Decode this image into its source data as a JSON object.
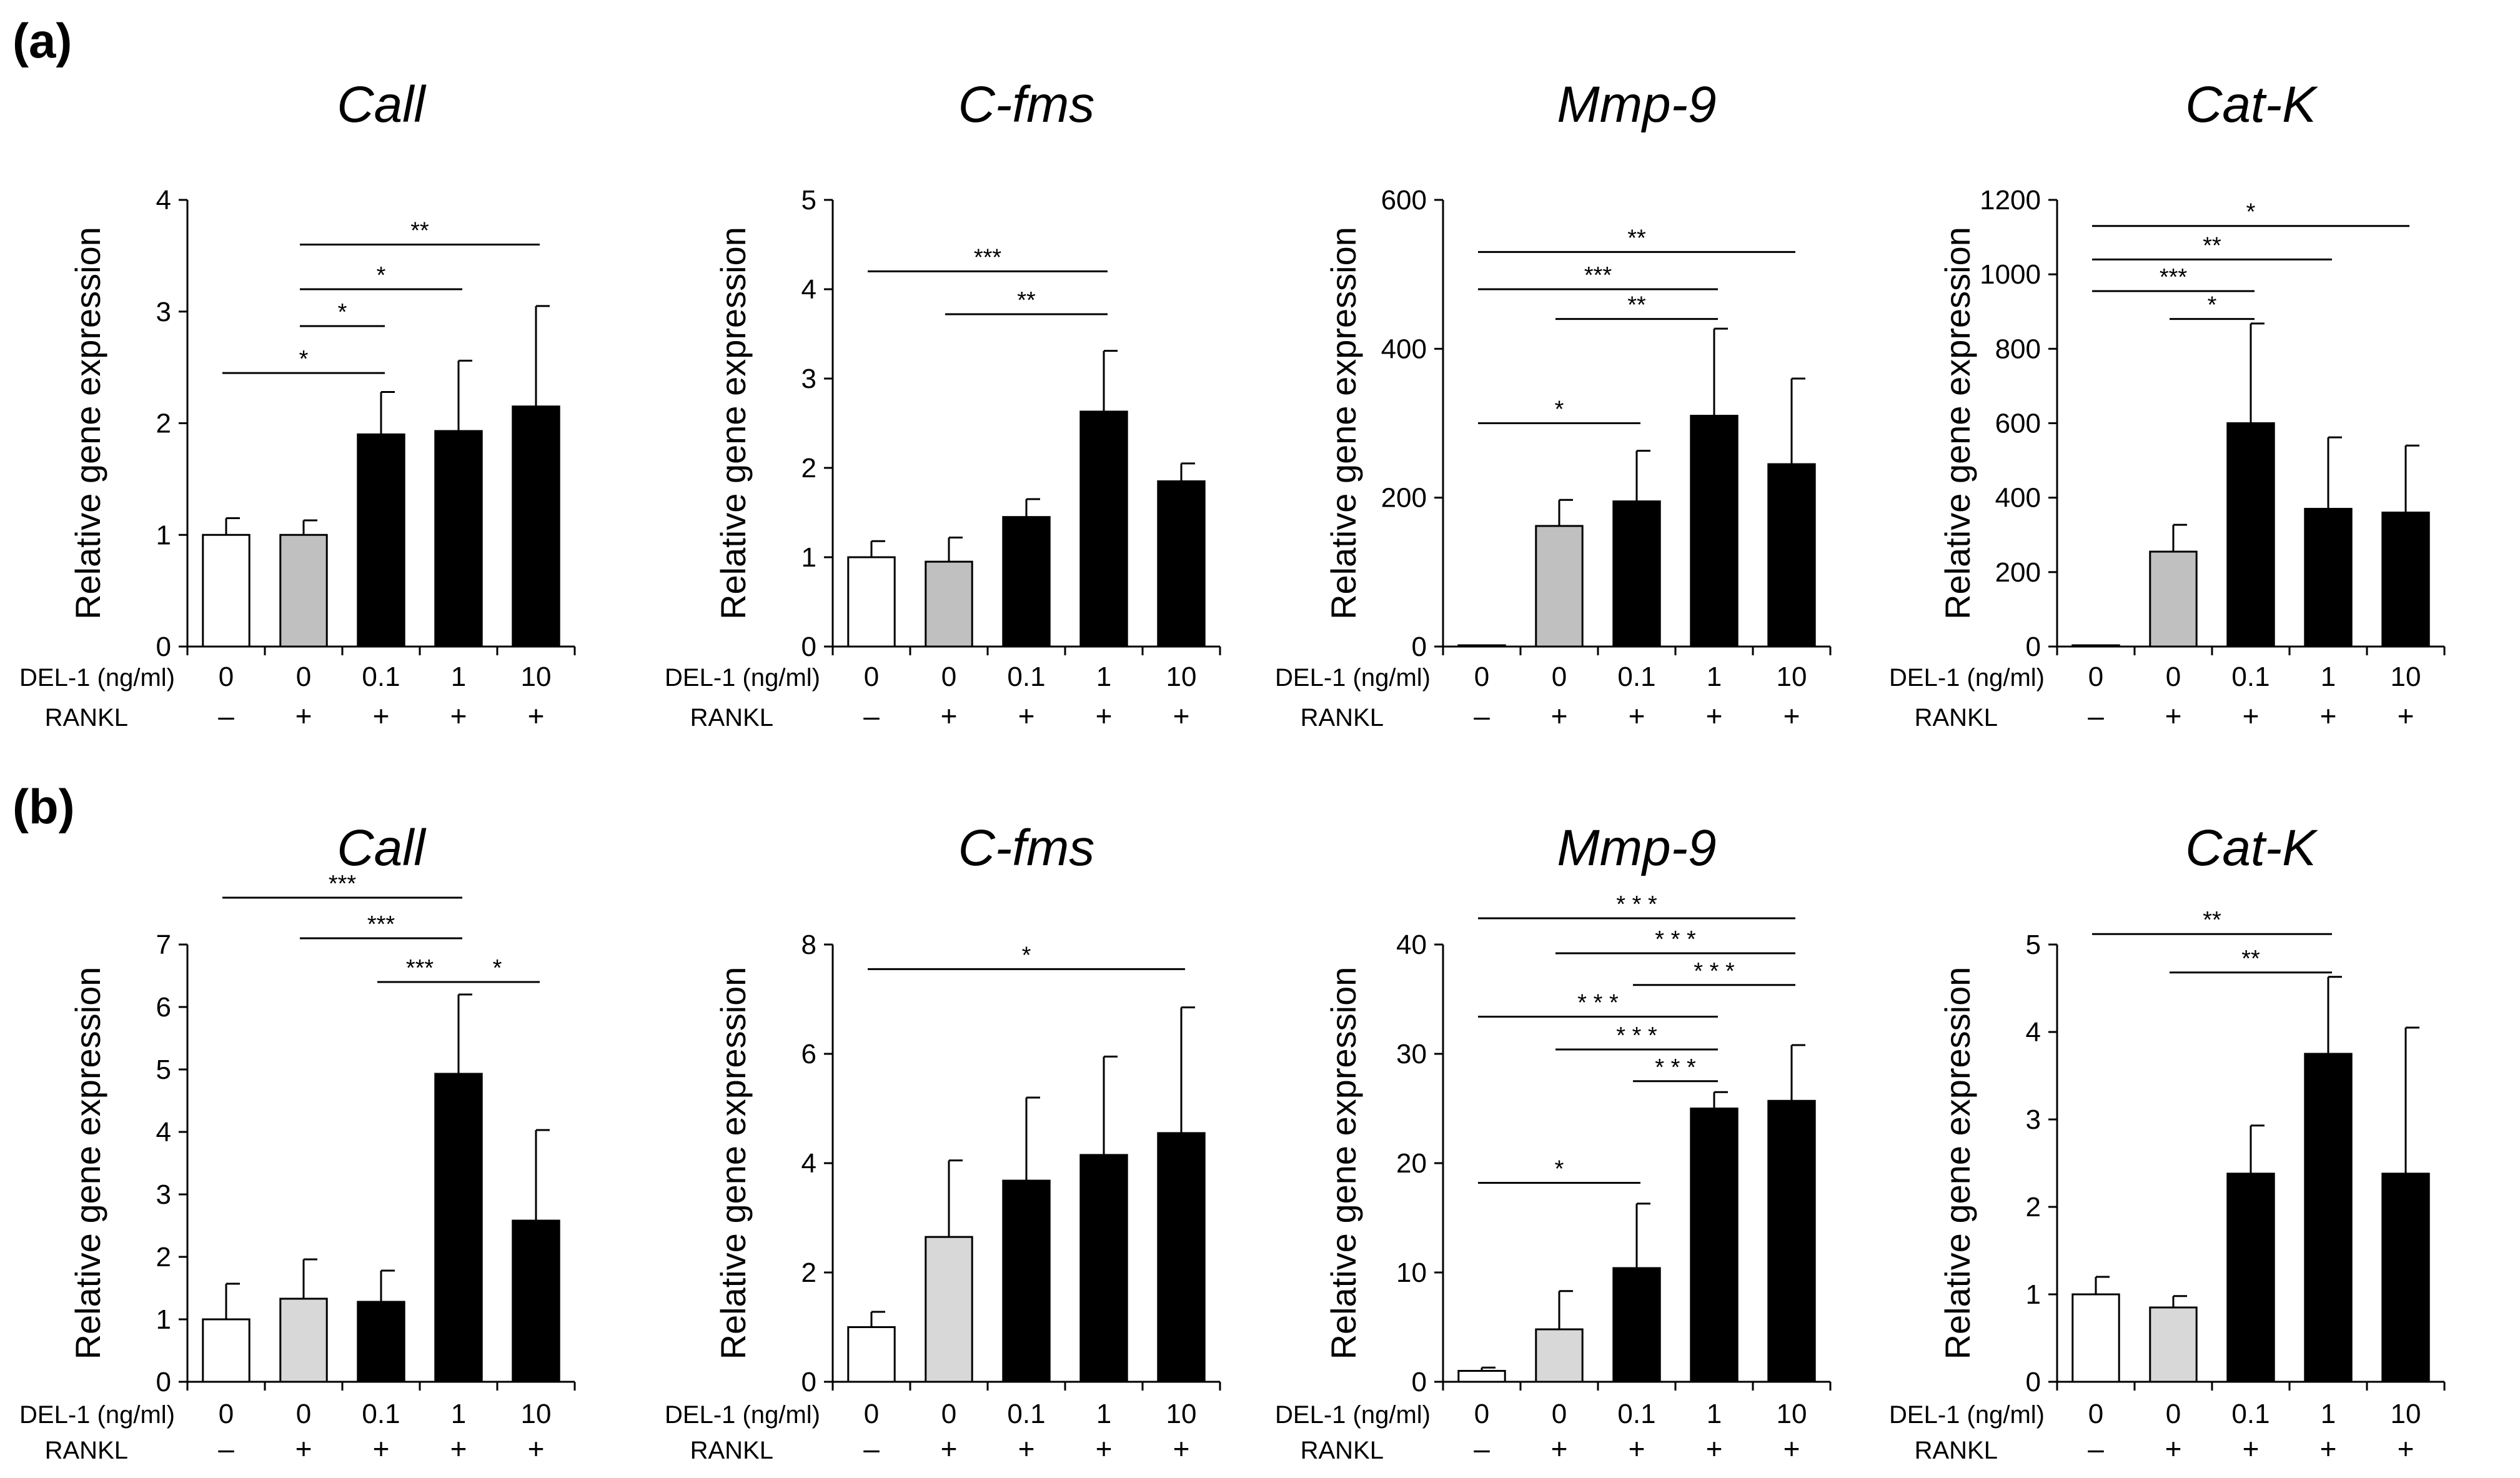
{
  "panels": [
    {
      "label": "(a)"
    },
    {
      "label": "(b)"
    }
  ],
  "chart_data": [
    {
      "panel": "(a)",
      "type": "bar",
      "title": "Call",
      "ylabel": "Relative gene expression",
      "ylim": [
        0,
        4
      ],
      "yticks": [
        0,
        1,
        2,
        3,
        4
      ],
      "categories": [
        "0",
        "0",
        "0.1",
        "1",
        "10"
      ],
      "row1_label": "DEL-1 (ng/ml)",
      "row2_label": "RANKL",
      "rankl": [
        "–",
        "+",
        "+",
        "+",
        "+"
      ],
      "values": [
        1.0,
        1.0,
        1.9,
        1.93,
        2.15
      ],
      "errors": [
        0.15,
        0.13,
        0.38,
        0.63,
        0.9
      ],
      "fills": [
        "#ffffff",
        "#c0c0c0",
        "#000000",
        "#000000",
        "#000000"
      ],
      "significance": [
        {
          "from": 0,
          "to": 2,
          "y": 2.45,
          "label": "*"
        },
        {
          "from": 1,
          "to": 2,
          "y": 2.87,
          "label": "*"
        },
        {
          "from": 1,
          "to": 3,
          "y": 3.2,
          "label": "*"
        },
        {
          "from": 1,
          "to": 4,
          "y": 3.6,
          "label": "**"
        }
      ]
    },
    {
      "panel": "(a)",
      "type": "bar",
      "title": "C-fms",
      "ylabel": "Relative gene expression",
      "ylim": [
        0,
        5
      ],
      "yticks": [
        0,
        1,
        2,
        3,
        4,
        5
      ],
      "categories": [
        "0",
        "0",
        "0.1",
        "1",
        "10"
      ],
      "row1_label": "DEL-1 (ng/ml)",
      "row2_label": "RANKL",
      "rankl": [
        "–",
        "+",
        "+",
        "+",
        "+"
      ],
      "values": [
        1.0,
        0.95,
        1.45,
        2.63,
        1.85
      ],
      "errors": [
        0.18,
        0.27,
        0.2,
        0.68,
        0.2
      ],
      "fills": [
        "#ffffff",
        "#c0c0c0",
        "#000000",
        "#000000",
        "#000000"
      ],
      "significance": [
        {
          "from": 0,
          "to": 3,
          "y": 4.2,
          "label": "***"
        },
        {
          "from": 1,
          "to": 3,
          "y": 3.72,
          "label": "**"
        }
      ]
    },
    {
      "panel": "(a)",
      "type": "bar",
      "title": "Mmp-9",
      "ylabel": "Relative gene expression",
      "ylim": [
        0,
        600
      ],
      "yticks": [
        0,
        200,
        400,
        600
      ],
      "categories": [
        "0",
        "0",
        "0.1",
        "1",
        "10"
      ],
      "row1_label": "DEL-1 (ng/ml)",
      "row2_label": "RANKL",
      "rankl": [
        "–",
        "+",
        "+",
        "+",
        "+"
      ],
      "values": [
        1,
        162,
        195,
        310,
        245
      ],
      "errors": [
        0,
        35,
        68,
        117,
        115
      ],
      "fills": [
        "#ffffff",
        "#c0c0c0",
        "#000000",
        "#000000",
        "#000000"
      ],
      "significance": [
        {
          "from": 0,
          "to": 2,
          "y": 300,
          "label": "*"
        },
        {
          "from": 1,
          "to": 3,
          "y": 440,
          "label": "**"
        },
        {
          "from": 0,
          "to": 3,
          "y": 480,
          "label": "***"
        },
        {
          "from": 0,
          "to": 4,
          "y": 530,
          "label": "**"
        }
      ]
    },
    {
      "panel": "(a)",
      "type": "bar",
      "title": "Cat-K",
      "ylabel": "Relative gene expression",
      "ylim": [
        0,
        1200
      ],
      "yticks": [
        0,
        200,
        400,
        600,
        800,
        1000,
        1200
      ],
      "categories": [
        "0",
        "0",
        "0.1",
        "1",
        "10"
      ],
      "row1_label": "DEL-1 (ng/ml)",
      "row2_label": "RANKL",
      "rankl": [
        "–",
        "+",
        "+",
        "+",
        "+"
      ],
      "values": [
        1,
        255,
        600,
        370,
        360
      ],
      "errors": [
        0,
        72,
        268,
        192,
        180
      ],
      "fills": [
        "#ffffff",
        "#c0c0c0",
        "#000000",
        "#000000",
        "#000000"
      ],
      "significance": [
        {
          "from": 1,
          "to": 2,
          "y": 880,
          "label": "*"
        },
        {
          "from": 0,
          "to": 2,
          "y": 955,
          "label": "***"
        },
        {
          "from": 0,
          "to": 3,
          "y": 1040,
          "label": "**"
        },
        {
          "from": 0,
          "to": 4,
          "y": 1130,
          "label": "*"
        }
      ]
    },
    {
      "panel": "(b)",
      "type": "bar",
      "title": "Call",
      "ylabel": "Relative gene expression",
      "ylim": [
        0,
        7
      ],
      "yticks": [
        0,
        1,
        2,
        3,
        4,
        5,
        6,
        7
      ],
      "categories": [
        "0",
        "0",
        "0.1",
        "1",
        "10"
      ],
      "row1_label": "DEL-1 (ng/ml)",
      "row2_label": "RANKL",
      "rankl": [
        "–",
        "+",
        "+",
        "+",
        "+"
      ],
      "values": [
        1.0,
        1.33,
        1.28,
        4.93,
        2.58
      ],
      "errors": [
        0.57,
        0.63,
        0.5,
        1.27,
        1.45
      ],
      "fills": [
        "#ffffff",
        "#d8d8d8",
        "#000000",
        "#000000",
        "#000000"
      ],
      "significance": [
        {
          "from": 2,
          "to": 3,
          "y": 6.4,
          "label": "***"
        },
        {
          "from": 3,
          "to": 4,
          "y": 6.4,
          "label": "*"
        },
        {
          "from": 1,
          "to": 3,
          "y": 7.1,
          "label": "***"
        },
        {
          "from": 0,
          "to": 3,
          "y": 7.75,
          "label": "***"
        }
      ]
    },
    {
      "panel": "(b)",
      "type": "bar",
      "title": "C-fms",
      "ylabel": "Relative gene expression",
      "ylim": [
        0,
        8
      ],
      "yticks": [
        0,
        2,
        4,
        6,
        8
      ],
      "categories": [
        "0",
        "0",
        "0.1",
        "1",
        "10"
      ],
      "row1_label": "DEL-1 (ng/ml)",
      "row2_label": "RANKL",
      "rankl": [
        "–",
        "+",
        "+",
        "+",
        "+"
      ],
      "values": [
        1.0,
        2.65,
        3.68,
        4.15,
        4.55
      ],
      "errors": [
        0.28,
        1.4,
        1.52,
        1.8,
        2.3
      ],
      "fills": [
        "#ffffff",
        "#d8d8d8",
        "#000000",
        "#000000",
        "#000000"
      ],
      "significance": [
        {
          "from": 0,
          "to": 4,
          "y": 7.55,
          "label": "*"
        }
      ]
    },
    {
      "panel": "(b)",
      "type": "bar",
      "title": "Mmp-9",
      "ylabel": "Relative gene expression",
      "ylim": [
        0,
        40
      ],
      "yticks": [
        0,
        10,
        20,
        30,
        40
      ],
      "categories": [
        "0",
        "0",
        "0.1",
        "1",
        "10"
      ],
      "row1_label": "DEL-1 (ng/ml)",
      "row2_label": "RANKL",
      "rankl": [
        "–",
        "+",
        "+",
        "+",
        "+"
      ],
      "values": [
        1.0,
        4.8,
        10.4,
        25.0,
        25.7
      ],
      "errors": [
        0.3,
        3.5,
        5.9,
        1.5,
        5.1
      ],
      "fills": [
        "#ffffff",
        "#d8d8d8",
        "#000000",
        "#000000",
        "#000000"
      ],
      "significance": [
        {
          "from": 0,
          "to": 2,
          "y": 18.2,
          "label": "*"
        },
        {
          "from": 2,
          "to": 3,
          "y": 27.5,
          "label": "* * *"
        },
        {
          "from": 1,
          "to": 3,
          "y": 30.4,
          "label": "* * *"
        },
        {
          "from": 0,
          "to": 3,
          "y": 33.4,
          "label": "* * *"
        },
        {
          "from": 2,
          "to": 4,
          "y": 36.3,
          "label": "* * *"
        },
        {
          "from": 1,
          "to": 4,
          "y": 39.2,
          "label": "* * *"
        },
        {
          "from": 0,
          "to": 4,
          "y": 42.4,
          "label": "* * *"
        }
      ]
    },
    {
      "panel": "(b)",
      "type": "bar",
      "title": "Cat-K",
      "ylabel": "Relative gene expression",
      "ylim": [
        0,
        5
      ],
      "yticks": [
        0,
        1,
        2,
        3,
        4,
        5
      ],
      "categories": [
        "0",
        "0",
        "0.1",
        "1",
        "10"
      ],
      "row1_label": "DEL-1 (ng/ml)",
      "row2_label": "RANKL",
      "rankl": [
        "–",
        "+",
        "+",
        "+",
        "+"
      ],
      "values": [
        1.0,
        0.85,
        2.38,
        3.75,
        2.38
      ],
      "errors": [
        0.2,
        0.13,
        0.55,
        0.88,
        1.67
      ],
      "fills": [
        "#ffffff",
        "#d8d8d8",
        "#000000",
        "#000000",
        "#000000"
      ],
      "significance": [
        {
          "from": 1,
          "to": 3,
          "y": 4.68,
          "label": "**"
        },
        {
          "from": 0,
          "to": 3,
          "y": 5.12,
          "label": "**"
        }
      ]
    }
  ]
}
